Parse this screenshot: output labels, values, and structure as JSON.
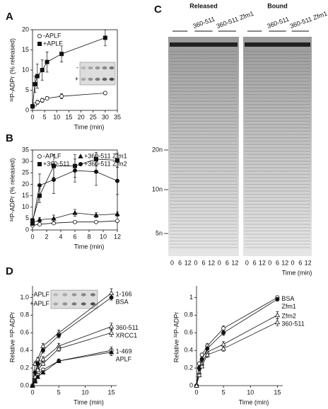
{
  "chart_data": [
    {
      "type": "line",
      "panel": "A",
      "xlabel": "Time (min)",
      "ylabel": "³²P-ADPr (% released)",
      "xlim": [
        0,
        35
      ],
      "xticks": [
        0,
        5,
        10,
        15,
        20,
        25,
        30,
        35
      ],
      "ylim": [
        0,
        20
      ],
      "yticks": [
        0,
        5,
        10,
        15,
        20
      ],
      "x": [
        0,
        1,
        2,
        4,
        6,
        12,
        30
      ],
      "legend": "upper left",
      "inset_labels": [
        "-",
        "+"
      ],
      "series": [
        {
          "name": "-APLF",
          "marker": "circle-open",
          "values": [
            1,
            1.5,
            2,
            2.5,
            3,
            3.5,
            4.3
          ],
          "errors": [
            0.3,
            0.4,
            0.5,
            0.5,
            0.4,
            0.6,
            0.4
          ]
        },
        {
          "name": "+APLF",
          "marker": "square",
          "values": [
            1,
            6.5,
            8.5,
            10,
            12,
            14,
            18
          ],
          "errors": [
            0.5,
            2,
            3,
            2.5,
            2.5,
            2,
            2
          ]
        }
      ]
    },
    {
      "type": "line",
      "panel": "B",
      "xlabel": "Time (min)",
      "ylabel": "³²P-ADPr (% released)",
      "xlim": [
        0,
        12
      ],
      "xticks": [
        0,
        2,
        4,
        6,
        8,
        10,
        12
      ],
      "ylim": [
        0,
        35
      ],
      "yticks": [
        0,
        5,
        10,
        15,
        20,
        25,
        30,
        35
      ],
      "x": [
        0,
        1,
        3,
        6,
        9,
        12
      ],
      "legend": "upper left",
      "series": [
        {
          "name": "-APLF",
          "marker": "circle-open",
          "values": [
            2,
            2.5,
            3,
            3.5,
            3.5,
            4
          ],
          "errors": [
            0.5,
            0.5,
            0.5,
            0.5,
            0.5,
            0.5
          ]
        },
        {
          "name": "+360-511",
          "marker": "square",
          "values": [
            4,
            15,
            28,
            28,
            31,
            30.5
          ],
          "errors": [
            1,
            3,
            5,
            5,
            3,
            3
          ]
        },
        {
          "name": "+360-511 Zfm1",
          "marker": "triangle",
          "values": [
            3,
            4.5,
            5,
            7.5,
            6.5,
            7
          ],
          "errors": [
            1,
            1,
            1.5,
            1.5,
            1,
            1
          ]
        },
        {
          "name": "+360-511 Zfm2",
          "marker": "circle",
          "values": [
            3,
            19.5,
            22,
            26,
            25.5,
            21.5
          ],
          "errors": [
            1,
            5,
            6,
            5,
            6,
            6
          ]
        }
      ]
    },
    {
      "type": "gel",
      "panel": "C",
      "groups": [
        "Released",
        "Bound"
      ],
      "protein_labels": [
        "360-511",
        "360-511 Zfm1"
      ],
      "size_markers": [
        "20n",
        "10n",
        "5n"
      ],
      "lanes": [
        "0",
        "6",
        "12"
      ],
      "xlabel": "Time (min)"
    },
    {
      "type": "line",
      "panel": "D",
      "xlabel": "Time (min)",
      "ylabel": "Relative ³²P-ADPr",
      "xlim": [
        0,
        16
      ],
      "xticks": [
        0,
        5,
        10,
        15
      ],
      "ylim": [
        0,
        1.1
      ],
      "yticks": [
        {
          "value": 0,
          "label": "0.0"
        },
        0.2,
        0.4,
        0.6,
        0.8,
        {
          "value": 1,
          "label": "1.0"
        }
      ],
      "x": [
        0,
        0.5,
        1,
        2,
        5,
        15
      ],
      "legend": "end",
      "inset_labels": [
        "-APLF",
        "+APLF"
      ],
      "series": [
        {
          "name": "1-166",
          "marker": "triangle-open",
          "values": [
            0,
            0.25,
            0.3,
            0.45,
            0.6,
            1.05
          ],
          "errors": [
            0,
            0.02,
            0.02,
            0.03,
            0.03,
            0.05
          ]
        },
        {
          "name": "BSA",
          "marker": "circle",
          "values": [
            0,
            0.15,
            0.25,
            0.4,
            0.57,
            1.0
          ],
          "errors": [
            0,
            0.02,
            0.02,
            0.03,
            0.03,
            0.03
          ]
        },
        {
          "name": "360-511",
          "marker": "triangle-open",
          "values": [
            0,
            0.1,
            0.2,
            0.3,
            0.45,
            0.67
          ],
          "errors": [
            0,
            0.02,
            0.02,
            0.03,
            0.03,
            0.04
          ]
        },
        {
          "name": "XRCC1",
          "marker": "triangle-open",
          "values": [
            0,
            0.1,
            0.18,
            0.25,
            0.42,
            0.6
          ],
          "errors": [
            0,
            0.02,
            0.02,
            0.02,
            0.03,
            0.04
          ]
        },
        {
          "name": "1-469",
          "marker": "circle-open",
          "values": [
            0,
            0.05,
            0.12,
            0.18,
            0.28,
            0.4
          ],
          "errors": [
            0,
            0.02,
            0.02,
            0.02,
            0.02,
            0.04
          ]
        },
        {
          "name": "APLF",
          "marker": "triangle",
          "values": [
            0,
            0.05,
            0.1,
            0.15,
            0.28,
            0.38
          ],
          "errors": [
            0,
            0.02,
            0.02,
            0.02,
            0.02,
            0.04
          ]
        }
      ]
    },
    {
      "type": "line",
      "xlabel": "Time (min)",
      "ylabel": "Relative ³²P-ADPr",
      "xlim": [
        0,
        16
      ],
      "xticks": [
        0,
        5,
        10,
        15
      ],
      "ylim": [
        0,
        1.1
      ],
      "yticks": [
        0,
        0.2,
        0.4,
        0.6,
        0.8,
        1
      ],
      "x": [
        0,
        0.5,
        1,
        2,
        5,
        15
      ],
      "legend": "end",
      "series": [
        {
          "name": "BSA",
          "marker": "circle-open",
          "values": [
            0,
            0.25,
            0.35,
            0.45,
            0.65,
            1.0
          ],
          "errors": [
            0,
            0.02,
            0.02,
            0.03,
            0.03,
            0.02
          ]
        },
        {
          "name": "Zfm1",
          "marker": "circle",
          "values": [
            0,
            0.2,
            0.3,
            0.42,
            0.6,
            0.98
          ],
          "errors": [
            0,
            0.02,
            0.02,
            0.03,
            0.03,
            0.02
          ]
        },
        {
          "name": "Zfm2",
          "marker": "triangle-open",
          "values": [
            0,
            0.15,
            0.25,
            0.38,
            0.47,
            0.8
          ],
          "errors": [
            0,
            0.02,
            0.02,
            0.03,
            0.03,
            0.04
          ]
        },
        {
          "name": "360-511",
          "marker": "triangle-open",
          "values": [
            0,
            0.12,
            0.22,
            0.35,
            0.42,
            0.72
          ],
          "errors": [
            0,
            0.02,
            0.02,
            0.03,
            0.03,
            0.04
          ]
        }
      ]
    }
  ]
}
